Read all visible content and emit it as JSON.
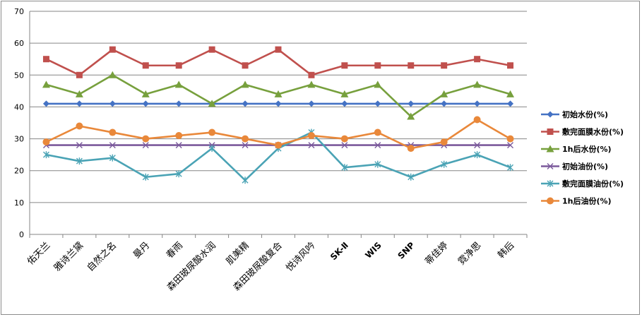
{
  "chart_data": {
    "type": "line",
    "title": "",
    "xlabel": "",
    "ylabel": "",
    "ylim": [
      0,
      70
    ],
    "yticks": [
      0,
      10,
      20,
      30,
      40,
      50,
      60,
      70
    ],
    "grid": "horizontal",
    "legend_position": "right",
    "categories": [
      "佑天兰",
      "雅诗兰黛",
      "自然之名",
      "曼丹",
      "春雨",
      "森田玻尿酸水润",
      "肌美精",
      "森田玻尿酸复合",
      "悦诗风吟",
      "SK-Ⅱ",
      "WIS",
      "SNP",
      "蒂佳婷",
      "霓净思",
      "韩后"
    ],
    "series": [
      {
        "name": "初始水份(%)",
        "color": "#4472c4",
        "marker": "diamond",
        "values": [
          41,
          41,
          41,
          41,
          41,
          41,
          41,
          41,
          41,
          41,
          41,
          41,
          41,
          41,
          41
        ]
      },
      {
        "name": "敷完面膜水份(%)",
        "color": "#c0504d",
        "marker": "square",
        "values": [
          55,
          50,
          58,
          53,
          53,
          58,
          53,
          58,
          50,
          53,
          53,
          53,
          53,
          55,
          53
        ]
      },
      {
        "name": "1h后水份(%)",
        "color": "#77a03d",
        "marker": "triangle",
        "values": [
          47,
          44,
          50,
          44,
          47,
          41,
          47,
          44,
          47,
          44,
          47,
          37,
          44,
          47,
          44
        ]
      },
      {
        "name": "初始油份(%)",
        "color": "#7b5a9c",
        "marker": "x",
        "values": [
          28,
          28,
          28,
          28,
          28,
          28,
          28,
          28,
          28,
          28,
          28,
          28,
          28,
          28,
          28
        ]
      },
      {
        "name": "敷完面膜油份(%)",
        "color": "#4aa3b5",
        "marker": "star",
        "values": [
          25,
          23,
          24,
          18,
          19,
          27,
          17,
          27,
          32,
          21,
          22,
          18,
          22,
          25,
          21
        ]
      },
      {
        "name": "1h后油份(%)",
        "color": "#e9883a",
        "marker": "circle",
        "values": [
          29,
          34,
          32,
          30,
          31,
          32,
          30,
          28,
          31,
          30,
          32,
          27,
          29,
          36,
          30
        ]
      }
    ]
  }
}
